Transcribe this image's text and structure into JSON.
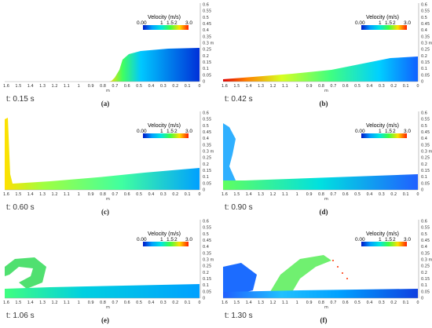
{
  "colorbar": {
    "title": "Velocity (m/s)",
    "ticks": [
      "0.00",
      "1",
      "1.5",
      "2",
      "3.0"
    ],
    "colors": [
      "#0018c8",
      "#00a0ff",
      "#00e8e0",
      "#40ff40",
      "#ffe000",
      "#ff2000"
    ]
  },
  "x_axis": {
    "ticks": [
      "1.6",
      "1.5",
      "1.4",
      "1.3",
      "1.2",
      "1.1",
      "1",
      "0.9",
      "0.8",
      "0.7",
      "0.6",
      "0.5",
      "0.4",
      "0.3",
      "0.2",
      "0.1",
      "0"
    ],
    "unit": "m"
  },
  "y_axis": {
    "ticks": [
      "0.6",
      "0.55",
      "0.5",
      "0.45",
      "0.4",
      "0.35",
      "0.3 m",
      "0.25",
      "0.2",
      "0.15",
      "0.1",
      "0.05",
      "0"
    ]
  },
  "panels": [
    {
      "time": "t: 0.15 s",
      "caption": "(a)"
    },
    {
      "time": "t: 0.42 s",
      "caption": "(b)"
    },
    {
      "time": "t: 0.60 s",
      "caption": "(c)"
    },
    {
      "time": "t: 0.90 s",
      "caption": "(d)"
    },
    {
      "time": "t: 1.06 s",
      "caption": "(e)"
    },
    {
      "time": "t: 1.30 s",
      "caption": "(f)"
    }
  ]
}
